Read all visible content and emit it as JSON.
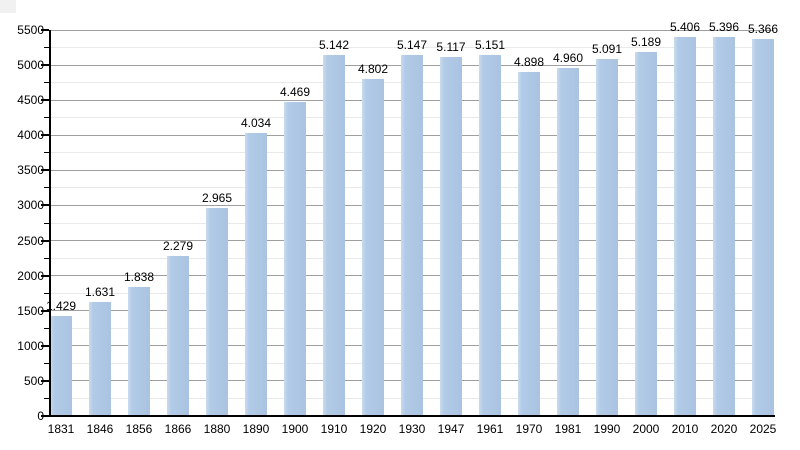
{
  "chart_data": {
    "type": "bar",
    "title": "",
    "xlabel": "",
    "ylabel": "",
    "categories": [
      "1831",
      "1846",
      "1856",
      "1866",
      "1880",
      "1890",
      "1900",
      "1910",
      "1920",
      "1930",
      "1947",
      "1961",
      "1970",
      "1981",
      "1990",
      "2000",
      "2010",
      "2020",
      "2025"
    ],
    "values": [
      1429,
      1631,
      1838,
      2279,
      2965,
      4034,
      4469,
      5142,
      4802,
      5147,
      5117,
      5151,
      4898,
      4960,
      5091,
      5189,
      5406,
      5396,
      5366
    ],
    "bar_labels": [
      "1.429",
      "1.631",
      "1.838",
      "2.279",
      "2.965",
      "4.034",
      "4.469",
      "5.142",
      "4.802",
      "5.147",
      "5.117",
      "5.151",
      "4.898",
      "4.960",
      "5.091",
      "5.189",
      "5.406",
      "5.396",
      "5.366"
    ],
    "ylim": [
      0,
      5500
    ],
    "ytick_step": 500,
    "yminor_step": 250,
    "ytick_labels": [
      "0",
      "500",
      "1000",
      "1500",
      "2000",
      "2500",
      "3000",
      "3500",
      "4000",
      "4500",
      "5000",
      "5500"
    ],
    "grid": true,
    "legend_position": "none",
    "colors": {
      "bar_fill": "#b2cbe7",
      "bar_highlight": "#cadcee",
      "bar_shade": "#a9c3e1",
      "major_gridline": "#9f9f9f",
      "minor_gridline": "#e9e9e9",
      "axis": "#000000",
      "text": "#000000",
      "background": "#ffffff"
    }
  }
}
